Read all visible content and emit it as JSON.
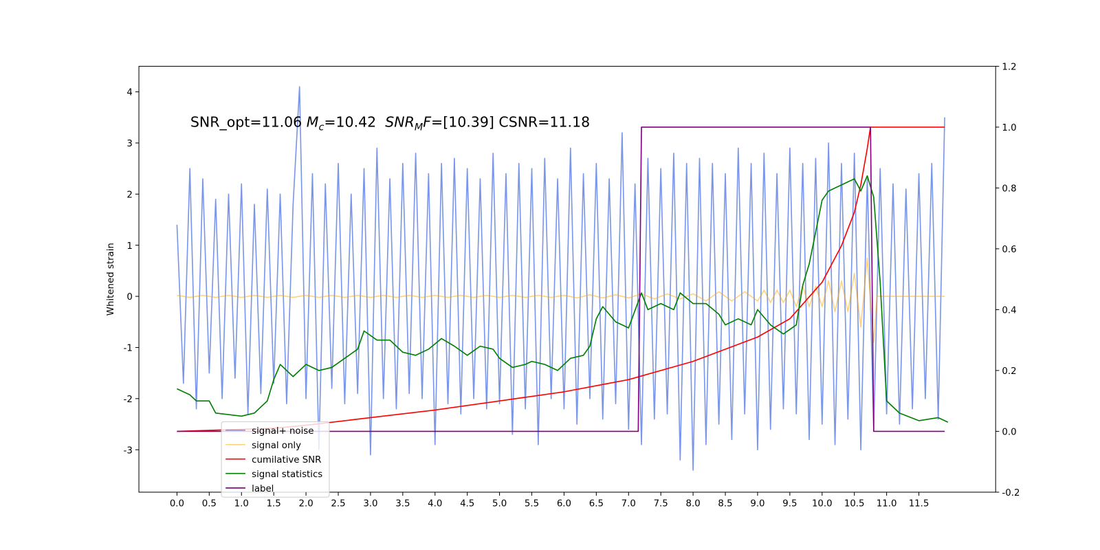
{
  "chart_data": {
    "type": "line",
    "annotation_parts": [
      "SNR_opt=11.06 ",
      "M",
      "c",
      "=10.42  ",
      "SNR",
      "M",
      "F",
      "=[10.39] CSNR=11.18"
    ],
    "ylabel": "Whitened strain",
    "xlim": [
      -0.59,
      12.69
    ],
    "ylim": [
      -3.83,
      4.5
    ],
    "y2lim": [
      -0.2,
      1.2
    ],
    "xticks": [
      {
        "value": 0,
        "label": "0.0"
      },
      0.5,
      {
        "value": 1,
        "label": "1.0"
      },
      1.5,
      {
        "value": 2,
        "label": "2.0"
      },
      2.5,
      {
        "value": 3,
        "label": "3.0"
      },
      3.5,
      {
        "value": 4,
        "label": "4.0"
      },
      4.5,
      {
        "value": 5,
        "label": "5.0"
      },
      5.5,
      {
        "value": 6,
        "label": "6.0"
      },
      6.5,
      {
        "value": 7,
        "label": "7.0"
      },
      7.5,
      {
        "value": 8,
        "label": "8.0"
      },
      8.5,
      {
        "value": 9,
        "label": "9.0"
      },
      9.5,
      {
        "value": 10,
        "label": "10.0"
      },
      10.5,
      {
        "value": 11,
        "label": "11.0"
      },
      11.5
    ],
    "yticks": [
      -3,
      -2,
      -1,
      0,
      1,
      2,
      3,
      4
    ],
    "y2ticks": [
      -0.2,
      {
        "value": 0,
        "label": "0.0"
      },
      0.2,
      0.4,
      0.6,
      0.8,
      {
        "value": 1,
        "label": "1.0"
      },
      1.2
    ],
    "series": [
      {
        "name": "signal+ noise",
        "color": "#4169e1",
        "alpha": 0.7,
        "axis": "y",
        "x": [
          0.0,
          0.1,
          0.2,
          0.3,
          0.4,
          0.5,
          0.6,
          0.7,
          0.8,
          0.9,
          1.0,
          1.1,
          1.2,
          1.3,
          1.4,
          1.5,
          1.6,
          1.7,
          1.8,
          1.9,
          2.0,
          2.1,
          2.2,
          2.3,
          2.4,
          2.5,
          2.6,
          2.7,
          2.8,
          2.9,
          3.0,
          3.1,
          3.2,
          3.3,
          3.4,
          3.5,
          3.6,
          3.7,
          3.8,
          3.9,
          4.0,
          4.1,
          4.2,
          4.3,
          4.4,
          4.5,
          4.6,
          4.7,
          4.8,
          4.9,
          5.0,
          5.1,
          5.2,
          5.3,
          5.4,
          5.5,
          5.6,
          5.7,
          5.8,
          5.9,
          6.0,
          6.1,
          6.2,
          6.3,
          6.4,
          6.5,
          6.6,
          6.7,
          6.8,
          6.9,
          7.0,
          7.1,
          7.2,
          7.3,
          7.4,
          7.5,
          7.6,
          7.7,
          7.8,
          7.9,
          8.0,
          8.1,
          8.2,
          8.3,
          8.4,
          8.5,
          8.6,
          8.7,
          8.8,
          8.9,
          9.0,
          9.1,
          9.2,
          9.3,
          9.4,
          9.5,
          9.6,
          9.7,
          9.8,
          9.9,
          10.0,
          10.1,
          10.2,
          10.3,
          10.4,
          10.5,
          10.6,
          10.7,
          10.8,
          10.9,
          11.0,
          11.1,
          11.2,
          11.3,
          11.4,
          11.5,
          11.6,
          11.7,
          11.8,
          11.9
        ],
        "values": [
          1.4,
          -1.7,
          2.5,
          -2.2,
          2.3,
          -1.5,
          1.9,
          -2.0,
          2.0,
          -1.6,
          2.2,
          -2.3,
          1.8,
          -1.9,
          2.1,
          -1.7,
          2.0,
          -2.1,
          1.8,
          4.1,
          -2.0,
          2.4,
          -3.0,
          2.2,
          -1.8,
          2.6,
          -2.1,
          2.0,
          -1.9,
          2.5,
          -3.1,
          2.9,
          -2.0,
          2.3,
          -2.2,
          2.6,
          -1.9,
          2.8,
          -2.0,
          2.4,
          -2.9,
          2.6,
          -2.1,
          2.7,
          -2.3,
          2.5,
          -2.0,
          2.3,
          -2.2,
          2.8,
          -2.1,
          2.4,
          -2.7,
          2.6,
          -2.2,
          2.5,
          -2.9,
          2.7,
          -2.0,
          2.3,
          -2.2,
          2.9,
          -2.5,
          2.4,
          -2.0,
          2.6,
          -2.4,
          2.3,
          -2.1,
          3.2,
          -2.6,
          2.2,
          -2.9,
          2.7,
          -2.4,
          2.5,
          -2.3,
          2.8,
          -3.2,
          2.6,
          -3.4,
          2.7,
          -2.9,
          2.6,
          -2.5,
          2.4,
          -2.8,
          2.9,
          -2.3,
          2.6,
          -3.0,
          2.8,
          -2.6,
          2.4,
          -2.2,
          2.9,
          -2.3,
          2.6,
          -2.8,
          2.7,
          -2.5,
          3.0,
          -2.9,
          2.6,
          -2.4,
          2.8,
          -3.0,
          2.3,
          -2.6,
          2.5,
          -2.3,
          2.2,
          -2.5,
          2.1,
          -2.2,
          2.4,
          -2.0,
          2.6,
          -2.4,
          3.5
        ]
      },
      {
        "name": "signal only",
        "color": "#ffa500",
        "alpha": 0.5,
        "axis": "y",
        "x": [
          0.0,
          0.2,
          0.4,
          0.6,
          0.8,
          1.0,
          1.2,
          1.4,
          1.6,
          1.8,
          2.0,
          2.2,
          2.4,
          2.6,
          2.8,
          3.0,
          3.2,
          3.4,
          3.6,
          3.8,
          4.0,
          4.2,
          4.4,
          4.6,
          4.8,
          5.0,
          5.2,
          5.4,
          5.6,
          5.8,
          6.0,
          6.2,
          6.4,
          6.6,
          6.8,
          7.0,
          7.2,
          7.4,
          7.6,
          7.8,
          8.0,
          8.2,
          8.4,
          8.6,
          8.8,
          9.0,
          9.1,
          9.2,
          9.3,
          9.4,
          9.5,
          9.6,
          9.7,
          9.8,
          9.9,
          10.0,
          10.1,
          10.2,
          10.3,
          10.4,
          10.5,
          10.6,
          10.7,
          10.8,
          10.85,
          11.9
        ],
        "values": [
          0.02,
          -0.02,
          0.02,
          -0.02,
          0.02,
          -0.02,
          0.02,
          -0.02,
          0.02,
          -0.02,
          0.02,
          -0.02,
          0.02,
          -0.02,
          0.02,
          -0.02,
          0.02,
          -0.02,
          0.02,
          -0.02,
          0.02,
          -0.02,
          0.02,
          -0.02,
          0.02,
          -0.02,
          0.02,
          -0.02,
          0.02,
          -0.02,
          0.02,
          -0.03,
          0.03,
          -0.03,
          0.03,
          -0.03,
          0.05,
          -0.05,
          0.05,
          -0.05,
          0.05,
          -0.09,
          0.09,
          -0.09,
          0.09,
          -0.09,
          0.12,
          -0.12,
          0.12,
          -0.12,
          0.12,
          -0.2,
          0.2,
          -0.2,
          0.2,
          -0.2,
          0.3,
          -0.3,
          0.3,
          -0.3,
          0.45,
          -0.6,
          0.75,
          -0.9,
          0,
          0
        ]
      },
      {
        "name": "cumilative SNR",
        "color": "#ff0000",
        "alpha": 1,
        "axis": "y2",
        "x": [
          0.0,
          1.5,
          2.0,
          3.0,
          4.0,
          5.0,
          6.0,
          7.0,
          8.0,
          9.0,
          9.5,
          10.0,
          10.3,
          10.5,
          10.6,
          10.7,
          10.75,
          11.9
        ],
        "values": [
          0,
          0.01,
          0.02,
          0.045,
          0.07,
          0.1,
          0.13,
          0.17,
          0.23,
          0.31,
          0.37,
          0.49,
          0.61,
          0.72,
          0.81,
          0.93,
          1.0,
          1.0
        ]
      },
      {
        "name": "signal statistics",
        "color": "#008000",
        "alpha": 1,
        "axis": "y2",
        "x": [
          0.0,
          0.2,
          0.3,
          0.5,
          0.6,
          0.8,
          1.0,
          1.2,
          1.4,
          1.5,
          1.6,
          1.8,
          2.0,
          2.2,
          2.4,
          2.6,
          2.8,
          2.9,
          3.1,
          3.3,
          3.5,
          3.7,
          3.9,
          4.1,
          4.3,
          4.5,
          4.7,
          4.9,
          5.0,
          5.2,
          5.4,
          5.5,
          5.7,
          5.9,
          6.1,
          6.3,
          6.4,
          6.5,
          6.6,
          6.8,
          7.0,
          7.2,
          7.3,
          7.5,
          7.7,
          7.8,
          8.0,
          8.2,
          8.4,
          8.5,
          8.7,
          8.9,
          9.0,
          9.2,
          9.4,
          9.6,
          9.7,
          9.8,
          10.0,
          10.1,
          10.3,
          10.5,
          10.6,
          10.7,
          10.8,
          10.9,
          11.0,
          11.2,
          11.5,
          11.8,
          11.95
        ],
        "values": [
          0.14,
          0.12,
          0.1,
          0.1,
          0.06,
          0.055,
          0.05,
          0.06,
          0.1,
          0.17,
          0.22,
          0.18,
          0.22,
          0.2,
          0.21,
          0.24,
          0.27,
          0.33,
          0.3,
          0.3,
          0.26,
          0.25,
          0.27,
          0.305,
          0.28,
          0.25,
          0.28,
          0.27,
          0.24,
          0.21,
          0.22,
          0.23,
          0.22,
          0.2,
          0.24,
          0.25,
          0.28,
          0.37,
          0.41,
          0.36,
          0.34,
          0.455,
          0.4,
          0.42,
          0.4,
          0.455,
          0.42,
          0.42,
          0.385,
          0.35,
          0.37,
          0.35,
          0.4,
          0.35,
          0.32,
          0.35,
          0.48,
          0.55,
          0.76,
          0.79,
          0.81,
          0.83,
          0.79,
          0.84,
          0.77,
          0.49,
          0.1,
          0.06,
          0.035,
          0.045,
          0.03
        ]
      },
      {
        "name": "label",
        "color": "#800080",
        "alpha": 1,
        "axis": "y2",
        "x": [
          0.0,
          7.15,
          7.2,
          10.75,
          10.8,
          11.9
        ],
        "values": [
          0,
          0,
          1,
          1,
          0,
          0
        ]
      }
    ]
  }
}
